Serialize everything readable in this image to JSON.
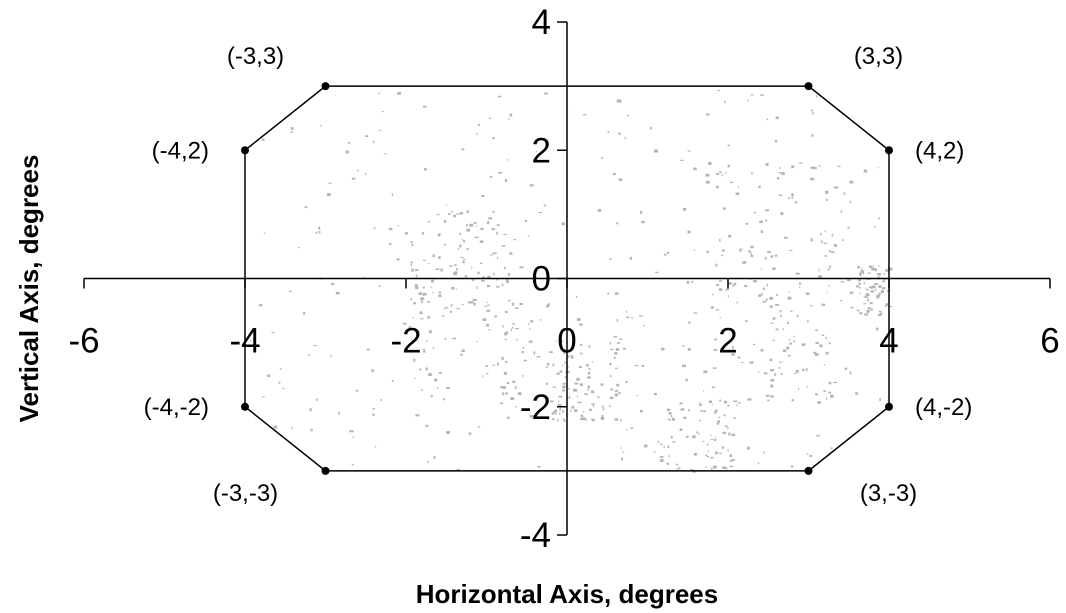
{
  "chart_data": {
    "type": "line",
    "title": "",
    "xlabel": "Horizontal Axis, degrees",
    "ylabel": "Vertical Axis, degrees",
    "xlim": [
      -6,
      6
    ],
    "ylim": [
      -4,
      4
    ],
    "x_ticks": [
      -6,
      -4,
      -2,
      0,
      2,
      4,
      6
    ],
    "y_ticks": [
      -4,
      -2,
      0,
      2,
      4
    ],
    "x_tick_labels": [
      "-6",
      "-4",
      "-2",
      "0",
      "2",
      "4",
      "6"
    ],
    "y_tick_labels": [
      "-4",
      "-2",
      "0",
      "2",
      "4"
    ],
    "grid": false,
    "closed": true,
    "points": [
      {
        "x": -3,
        "y": 3,
        "label": "(-3,3)"
      },
      {
        "x": 3,
        "y": 3,
        "label": "(3,3)"
      },
      {
        "x": 4,
        "y": 2,
        "label": "(4,2)"
      },
      {
        "x": 4,
        "y": -2,
        "label": "(4,-2)"
      },
      {
        "x": 3,
        "y": -3,
        "label": "(3,-3)"
      },
      {
        "x": -3,
        "y": -3,
        "label": "(-3,-3)"
      },
      {
        "x": -4,
        "y": -2,
        "label": "(-4,-2)"
      },
      {
        "x": -4,
        "y": 2,
        "label": "(-4,2)"
      }
    ]
  }
}
